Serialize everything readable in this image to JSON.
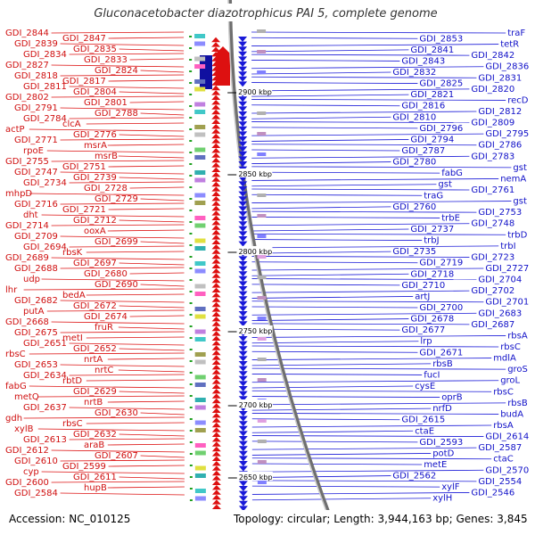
{
  "header": {
    "title": "Gluconacetobacter diazotrophicus PAI 5, complete genome"
  },
  "footer": {
    "accession": "Accession: NC_010125",
    "summary": "Topology: circular; Length: 3,944,163 bp; Genes: 3,845"
  },
  "colors": {
    "reverse_strand": "#dd1010",
    "forward_strand": "#1a1ad8",
    "backbone": "#888888"
  },
  "scale_ticks": [
    "2900 kbp",
    "2850 kbp",
    "2800 kbp",
    "2750 kbp",
    "2700 kbp",
    "2650 kbp"
  ],
  "left_labels": [
    "GDI_2844",
    "GDI_2847",
    "GDI_2839",
    "GDI_2835",
    "GDI_2834",
    "GDI_2833",
    "GDI_2827",
    "GDI_2824",
    "GDI_2818",
    "GDI_2817",
    "GDI_2811",
    "GDI_2804",
    "GDI_2802",
    "GDI_2801",
    "GDI_2791",
    "GDI_2788",
    "GDI_2784",
    "clcA",
    "actP",
    "GDI_2776",
    "GDI_2771",
    "msrA",
    "rpoE",
    "msrB",
    "GDI_2755",
    "GDI_2751",
    "GDI_2747",
    "GDI_2739",
    "GDI_2734",
    "GDI_2728",
    "mhpD",
    "GDI_2729",
    "GDI_2716",
    "GDI_2721",
    "dht",
    "GDI_2712",
    "GDI_2714",
    "ooxA",
    "GDI_2709",
    "GDI_2699",
    "GDI_2694",
    "rbsK",
    "GDI_2689",
    "GDI_2697",
    "GDI_2688",
    "GDI_2680",
    "udp",
    "GDI_2690",
    "lhr",
    "bedA",
    "GDI_2682",
    "GDI_2672",
    "putA",
    "GDI_2674",
    "GDI_2668",
    "fruR",
    "GDI_2675",
    "metI",
    "GDI_2651",
    "GDI_2652",
    "rbsC",
    "nrtA",
    "GDI_2653",
    "nrtC",
    "GDI_2634",
    "rbtD",
    "fabG",
    "GDI_2629",
    "metQ",
    "nrtB",
    "GDI_2637",
    "GDI_2630",
    "gdh",
    "rbsC",
    "xylB",
    "GDI_2632",
    "GDI_2613",
    "araB",
    "GDI_2612",
    "GDI_2607",
    "GDI_2610",
    "GDI_2599",
    "cyp",
    "GDI_2611",
    "GDI_2600",
    "hupB",
    "GDI_2584"
  ],
  "right_labels": [
    "traF",
    "GDI_2853",
    "tetR",
    "GDI_2841",
    "GDI_2842",
    "GDI_2843",
    "GDI_2836",
    "GDI_2832",
    "GDI_2831",
    "GDI_2825",
    "GDI_2820",
    "GDI_2821",
    "recD",
    "GDI_2816",
    "GDI_2812",
    "GDI_2810",
    "GDI_2809",
    "GDI_2796",
    "GDI_2795",
    "GDI_2794",
    "GDI_2786",
    "GDI_2787",
    "GDI_2783",
    "GDI_2780",
    "gst",
    "fabG",
    "nemA",
    "gst",
    "GDI_2761",
    "traG",
    "gst",
    "GDI_2760",
    "GDI_2753",
    "trbE",
    "GDI_2748",
    "GDI_2737",
    "trbD",
    "trbJ",
    "trbI",
    "GDI_2735",
    "GDI_2723",
    "GDI_2719",
    "GDI_2727",
    "GDI_2718",
    "GDI_2704",
    "GDI_2710",
    "GDI_2702",
    "artJ",
    "GDI_2701",
    "GDI_2700",
    "GDI_2683",
    "GDI_2678",
    "GDI_2687",
    "GDI_2677",
    "rbsA",
    "lrp",
    "rbsC",
    "GDI_2671",
    "mdlA",
    "rbsB",
    "groS",
    "fucI",
    "groL",
    "cysE",
    "rbsC",
    "oprB",
    "rbsB",
    "nrfD",
    "budA",
    "GDI_2615",
    "rbsA",
    "ctaE",
    "GDI_2614",
    "GDI_2593",
    "GDI_2587",
    "potD",
    "ctaC",
    "metE",
    "GDI_2570",
    "GDI_2562",
    "GDI_2554",
    "xylF",
    "GDI_2546",
    "xylH"
  ]
}
